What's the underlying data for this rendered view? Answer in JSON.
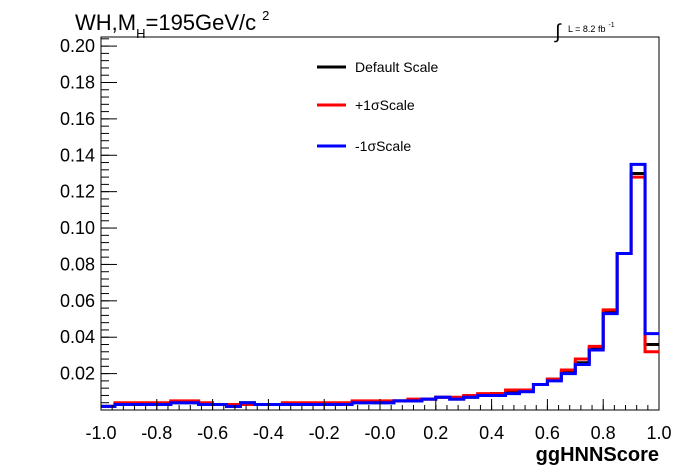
{
  "chart_data": {
    "type": "line",
    "title": "WH,M",
    "title_sub": "H",
    "title_rest": "=195GeV/c",
    "title_sup": "2",
    "lumi_symbol": "∫",
    "lumi_label": "L = 8.2 fb",
    "lumi_sup": "-1",
    "xlabel": "ggHNNScore",
    "ylabel": "",
    "xlim": [
      -1.0,
      1.0
    ],
    "ylim": [
      0.0,
      0.205
    ],
    "x_ticks": [
      "-1.0",
      "-0.8",
      "-0.6",
      "-0.4",
      "-0.2",
      "-0.0",
      "0.2",
      "0.4",
      "0.6",
      "0.8",
      "1.0"
    ],
    "y_ticks": [
      "0.02",
      "0.04",
      "0.06",
      "0.08",
      "0.10",
      "0.12",
      "0.14",
      "0.16",
      "0.18",
      "0.20"
    ],
    "legend_position": "top-center",
    "bin_edges": [
      -1.0,
      -0.95,
      -0.9,
      -0.85,
      -0.8,
      -0.75,
      -0.7,
      -0.65,
      -0.6,
      -0.55,
      -0.5,
      -0.45,
      -0.4,
      -0.35,
      -0.3,
      -0.25,
      -0.2,
      -0.15,
      -0.1,
      -0.05,
      0.0,
      0.05,
      0.1,
      0.15,
      0.2,
      0.25,
      0.3,
      0.35,
      0.4,
      0.45,
      0.5,
      0.55,
      0.6,
      0.65,
      0.7,
      0.75,
      0.8,
      0.85,
      0.9,
      0.95,
      1.0
    ],
    "series": [
      {
        "name": "Default Scale",
        "color": "#000000",
        "values": [
          0.002,
          0.003,
          0.003,
          0.003,
          0.003,
          0.004,
          0.004,
          0.003,
          0.003,
          0.002,
          0.004,
          0.003,
          0.003,
          0.003,
          0.003,
          0.003,
          0.003,
          0.003,
          0.004,
          0.004,
          0.004,
          0.005,
          0.005,
          0.006,
          0.007,
          0.006,
          0.007,
          0.008,
          0.009,
          0.01,
          0.011,
          0.014,
          0.017,
          0.021,
          0.026,
          0.034,
          0.054,
          0.086,
          0.13,
          0.036
        ]
      },
      {
        "name": "+1σScale",
        "color": "#ff0000",
        "values": [
          0.002,
          0.004,
          0.004,
          0.004,
          0.004,
          0.005,
          0.005,
          0.004,
          0.003,
          0.003,
          0.003,
          0.003,
          0.003,
          0.004,
          0.004,
          0.004,
          0.004,
          0.004,
          0.005,
          0.005,
          0.005,
          0.005,
          0.006,
          0.006,
          0.007,
          0.007,
          0.008,
          0.009,
          0.009,
          0.011,
          0.011,
          0.014,
          0.017,
          0.022,
          0.028,
          0.035,
          0.055,
          0.086,
          0.128,
          0.032
        ]
      },
      {
        "name": "-1σScale",
        "color": "#0000ff",
        "values": [
          0.002,
          0.003,
          0.003,
          0.003,
          0.003,
          0.004,
          0.004,
          0.003,
          0.003,
          0.002,
          0.004,
          0.003,
          0.003,
          0.003,
          0.003,
          0.003,
          0.003,
          0.003,
          0.004,
          0.004,
          0.004,
          0.005,
          0.005,
          0.006,
          0.007,
          0.006,
          0.007,
          0.008,
          0.008,
          0.009,
          0.01,
          0.014,
          0.016,
          0.02,
          0.025,
          0.033,
          0.053,
          0.086,
          0.135,
          0.042
        ]
      }
    ]
  }
}
